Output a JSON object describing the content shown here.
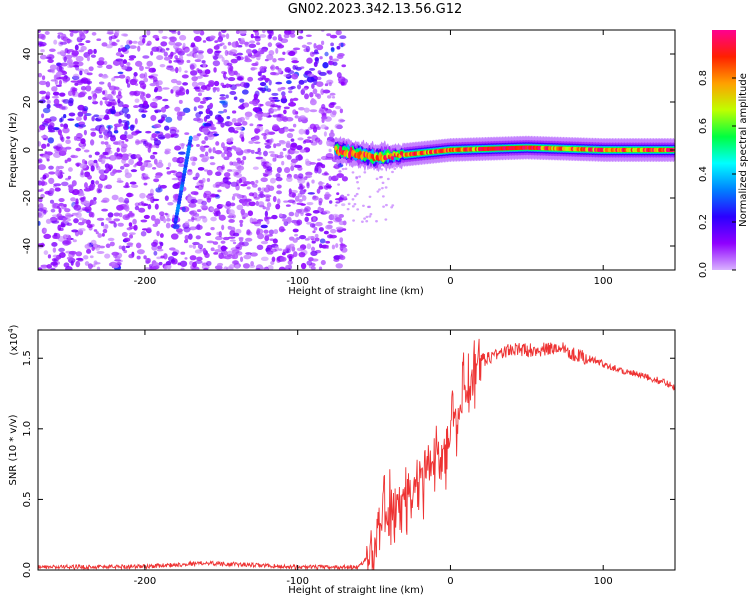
{
  "title": "GN02.2023.342.13.56.G12",
  "chart_data": [
    {
      "type": "heatmap",
      "xlabel": "Height of straight line (km)",
      "ylabel": "Frequency (Hz)",
      "xlim": [
        -270,
        147
      ],
      "ylim": [
        -50,
        50
      ],
      "xticks": [
        -200,
        -100,
        0,
        100
      ],
      "yticks": [
        -40,
        -20,
        0,
        20,
        40
      ],
      "colorbar": {
        "label": "Normalized spectral amplitude",
        "range": [
          0,
          1
        ],
        "ticks": [
          "0.0",
          "0.2",
          "0.4",
          "0.6",
          "0.8"
        ],
        "colormap": [
          "#d9b3ff",
          "#8f00ff",
          "#2b00ff",
          "#0080ff",
          "#00ffff",
          "#00ff40",
          "#bfff00",
          "#ffa000",
          "#ff2000",
          "#ff0090"
        ]
      },
      "features": {
        "ridge_line": {
          "x": [
            -180,
            -170
          ],
          "y": [
            -30,
            5
          ]
        },
        "upper_band_center": [
          [
            -270,
            15
          ],
          [
            -200,
            10
          ],
          [
            -150,
            18
          ],
          [
            -100,
            30
          ],
          [
            -75,
            42
          ]
        ],
        "trace_center": [
          [
            -75,
            0
          ],
          [
            -50,
            -3
          ],
          [
            -30,
            -2
          ],
          [
            0,
            0
          ],
          [
            50,
            1
          ],
          [
            100,
            0
          ],
          [
            147,
            0
          ]
        ],
        "data_edge_x": -75
      }
    },
    {
      "type": "line",
      "xlabel": "Height of straight line (km)",
      "ylabel": "SNR (10 * v/v)",
      "exponent_label": "(x10",
      "exponent_sup": "4",
      "exponent_close": ")",
      "xlim": [
        -270,
        147
      ],
      "ylim": [
        0,
        1.7
      ],
      "xticks": [
        -200,
        -100,
        0,
        100
      ],
      "yticks": [
        "0.0",
        "0.5",
        "1.0",
        "1.5"
      ],
      "color": "#ee3333",
      "series": [
        {
          "x": [
            -270,
            -200,
            -160,
            -100,
            -60,
            -50,
            -45,
            -40,
            -30,
            -20,
            -10,
            0,
            10,
            20,
            30,
            40,
            50,
            60,
            70,
            75,
            80,
            90,
            100,
            110,
            120,
            130,
            140,
            147
          ],
          "y": [
            0.02,
            0.025,
            0.05,
            0.02,
            0.02,
            0.15,
            0.35,
            0.4,
            0.5,
            0.65,
            0.8,
            0.95,
            1.25,
            1.48,
            1.53,
            1.56,
            1.56,
            1.56,
            1.57,
            1.58,
            1.53,
            1.5,
            1.46,
            1.42,
            1.39,
            1.36,
            1.33,
            1.3
          ]
        }
      ]
    }
  ]
}
